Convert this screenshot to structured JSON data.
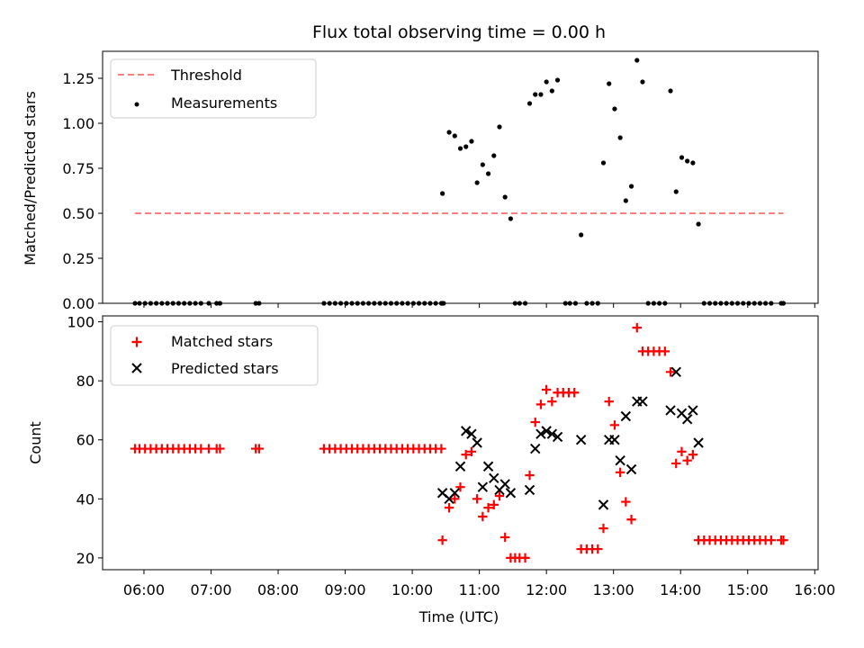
{
  "chart_data": [
    {
      "type": "scatter",
      "title": "Flux total observing time = 0.00 h",
      "xlabel": "",
      "ylabel": "Matched/Predicted stars",
      "ylim": [
        0,
        1.4
      ],
      "yticks": [
        "0.00",
        "0.25",
        "0.50",
        "0.75",
        "1.00",
        "1.25"
      ],
      "legend_position": "top-left",
      "series": [
        {
          "name": "Threshold",
          "kind": "line",
          "style": "dashed",
          "color": "#ff7f7f",
          "points": [
            [
              "05:52",
              0.5
            ],
            [
              "15:32",
              0.5
            ]
          ]
        },
        {
          "name": "Measurements",
          "kind": "scatter",
          "marker": "dot",
          "color": "#000000",
          "points": [
            [
              "05:52",
              0
            ],
            [
              "05:56",
              0
            ],
            [
              "06:01",
              0
            ],
            [
              "06:06",
              0
            ],
            [
              "06:11",
              0
            ],
            [
              "06:16",
              0
            ],
            [
              "06:21",
              0
            ],
            [
              "06:26",
              0
            ],
            [
              "06:31",
              0
            ],
            [
              "06:36",
              0
            ],
            [
              "06:41",
              0
            ],
            [
              "06:46",
              0
            ],
            [
              "06:51",
              0
            ],
            [
              "06:58",
              0
            ],
            [
              "07:05",
              0
            ],
            [
              "07:08",
              0
            ],
            [
              "07:40",
              0
            ],
            [
              "07:43",
              0
            ],
            [
              "08:41",
              0
            ],
            [
              "08:46",
              0
            ],
            [
              "08:51",
              0
            ],
            [
              "08:56",
              0
            ],
            [
              "09:01",
              0
            ],
            [
              "09:06",
              0
            ],
            [
              "09:11",
              0
            ],
            [
              "09:16",
              0
            ],
            [
              "09:21",
              0
            ],
            [
              "09:26",
              0
            ],
            [
              "09:31",
              0
            ],
            [
              "09:36",
              0
            ],
            [
              "09:41",
              0
            ],
            [
              "09:46",
              0
            ],
            [
              "09:51",
              0
            ],
            [
              "09:56",
              0
            ],
            [
              "10:01",
              0
            ],
            [
              "10:06",
              0
            ],
            [
              "10:11",
              0
            ],
            [
              "10:16",
              0
            ],
            [
              "10:21",
              0
            ],
            [
              "10:26",
              0
            ],
            [
              "10:27",
              0
            ],
            [
              "10:28",
              0
            ],
            [
              "10:27",
              0.61
            ],
            [
              "10:33",
              0.95
            ],
            [
              "10:38",
              0.93
            ],
            [
              "10:43",
              0.86
            ],
            [
              "10:48",
              0.87
            ],
            [
              "10:53",
              0.9
            ],
            [
              "10:58",
              0.67
            ],
            [
              "11:03",
              0.77
            ],
            [
              "11:08",
              0.72
            ],
            [
              "11:13",
              0.82
            ],
            [
              "11:18",
              0.98
            ],
            [
              "11:23",
              0.59
            ],
            [
              "11:28",
              0.47
            ],
            [
              "11:32",
              0
            ],
            [
              "11:36",
              0
            ],
            [
              "11:41",
              0
            ],
            [
              "11:45",
              1.11
            ],
            [
              "11:50",
              1.16
            ],
            [
              "11:55",
              1.16
            ],
            [
              "12:00",
              1.23
            ],
            [
              "12:05",
              1.18
            ],
            [
              "12:10",
              1.24
            ],
            [
              "12:17",
              0
            ],
            [
              "12:21",
              0
            ],
            [
              "12:26",
              0
            ],
            [
              "12:31",
              0.38
            ],
            [
              "12:36",
              0
            ],
            [
              "12:41",
              0
            ],
            [
              "12:46",
              0
            ],
            [
              "12:51",
              0.78
            ],
            [
              "12:56",
              1.22
            ],
            [
              "13:01",
              1.08
            ],
            [
              "13:06",
              0.92
            ],
            [
              "13:11",
              0.57
            ],
            [
              "13:16",
              0.65
            ],
            [
              "13:21",
              1.35
            ],
            [
              "13:26",
              1.23
            ],
            [
              "13:31",
              0
            ],
            [
              "13:36",
              0
            ],
            [
              "13:41",
              0
            ],
            [
              "13:46",
              0
            ],
            [
              "13:51",
              1.18
            ],
            [
              "13:56",
              0.62
            ],
            [
              "14:01",
              0.81
            ],
            [
              "14:06",
              0.79
            ],
            [
              "14:11",
              0.78
            ],
            [
              "14:16",
              0.44
            ],
            [
              "14:21",
              0
            ],
            [
              "14:26",
              0
            ],
            [
              "14:31",
              0
            ],
            [
              "14:36",
              0
            ],
            [
              "14:41",
              0
            ],
            [
              "14:46",
              0
            ],
            [
              "14:51",
              0
            ],
            [
              "14:56",
              0
            ],
            [
              "15:01",
              0
            ],
            [
              "15:06",
              0
            ],
            [
              "15:11",
              0
            ],
            [
              "15:16",
              0
            ],
            [
              "15:21",
              0
            ],
            [
              "15:30",
              0
            ],
            [
              "15:32",
              0
            ]
          ]
        }
      ]
    },
    {
      "type": "scatter",
      "title": "",
      "xlabel": "Time (UTC)",
      "ylabel": "Count",
      "ylim": [
        16,
        102
      ],
      "yticks": [
        "20",
        "40",
        "60",
        "80",
        "100"
      ],
      "xticks": [
        "06:00",
        "07:00",
        "08:00",
        "09:00",
        "10:00",
        "11:00",
        "12:00",
        "13:00",
        "14:00",
        "15:00",
        "16:00"
      ],
      "xlim": [
        "05:23",
        "16:03"
      ],
      "legend_position": "top-left",
      "series": [
        {
          "name": "Matched stars",
          "kind": "scatter",
          "marker": "plus",
          "color": "#ff0000",
          "points": [
            [
              "05:52",
              57
            ],
            [
              "05:56",
              57
            ],
            [
              "06:01",
              57
            ],
            [
              "06:06",
              57
            ],
            [
              "06:11",
              57
            ],
            [
              "06:16",
              57
            ],
            [
              "06:21",
              57
            ],
            [
              "06:26",
              57
            ],
            [
              "06:31",
              57
            ],
            [
              "06:36",
              57
            ],
            [
              "06:41",
              57
            ],
            [
              "06:46",
              57
            ],
            [
              "06:51",
              57
            ],
            [
              "06:58",
              57
            ],
            [
              "07:05",
              57
            ],
            [
              "07:08",
              57
            ],
            [
              "07:40",
              57
            ],
            [
              "07:43",
              57
            ],
            [
              "08:41",
              57
            ],
            [
              "08:46",
              57
            ],
            [
              "08:51",
              57
            ],
            [
              "08:56",
              57
            ],
            [
              "09:01",
              57
            ],
            [
              "09:06",
              57
            ],
            [
              "09:11",
              57
            ],
            [
              "09:16",
              57
            ],
            [
              "09:21",
              57
            ],
            [
              "09:26",
              57
            ],
            [
              "09:31",
              57
            ],
            [
              "09:36",
              57
            ],
            [
              "09:41",
              57
            ],
            [
              "09:46",
              57
            ],
            [
              "09:51",
              57
            ],
            [
              "09:56",
              57
            ],
            [
              "10:01",
              57
            ],
            [
              "10:06",
              57
            ],
            [
              "10:11",
              57
            ],
            [
              "10:16",
              57
            ],
            [
              "10:21",
              57
            ],
            [
              "10:26",
              57
            ],
            [
              "10:27",
              26
            ],
            [
              "10:33",
              37
            ],
            [
              "10:38",
              40
            ],
            [
              "10:43",
              44
            ],
            [
              "10:48",
              55
            ],
            [
              "10:53",
              56
            ],
            [
              "10:58",
              40
            ],
            [
              "11:03",
              34
            ],
            [
              "11:08",
              37
            ],
            [
              "11:13",
              38
            ],
            [
              "11:18",
              41
            ],
            [
              "11:23",
              27
            ],
            [
              "11:28",
              20
            ],
            [
              "11:32",
              20
            ],
            [
              "11:36",
              20
            ],
            [
              "11:41",
              20
            ],
            [
              "11:45",
              48
            ],
            [
              "11:50",
              66
            ],
            [
              "11:55",
              72
            ],
            [
              "12:00",
              77
            ],
            [
              "12:05",
              73
            ],
            [
              "12:10",
              76
            ],
            [
              "12:15",
              76
            ],
            [
              "12:20",
              76
            ],
            [
              "12:25",
              76
            ],
            [
              "12:31",
              23
            ],
            [
              "12:36",
              23
            ],
            [
              "12:41",
              23
            ],
            [
              "12:46",
              23
            ],
            [
              "12:51",
              30
            ],
            [
              "12:56",
              73
            ],
            [
              "13:01",
              65
            ],
            [
              "13:06",
              49
            ],
            [
              "13:11",
              39
            ],
            [
              "13:16",
              33
            ],
            [
              "13:21",
              98
            ],
            [
              "13:26",
              90
            ],
            [
              "13:31",
              90
            ],
            [
              "13:36",
              90
            ],
            [
              "13:41",
              90
            ],
            [
              "13:46",
              90
            ],
            [
              "13:51",
              83
            ],
            [
              "13:56",
              52
            ],
            [
              "14:01",
              56
            ],
            [
              "14:06",
              53
            ],
            [
              "14:11",
              55
            ],
            [
              "14:16",
              26
            ],
            [
              "14:21",
              26
            ],
            [
              "14:26",
              26
            ],
            [
              "14:31",
              26
            ],
            [
              "14:36",
              26
            ],
            [
              "14:41",
              26
            ],
            [
              "14:46",
              26
            ],
            [
              "14:51",
              26
            ],
            [
              "14:56",
              26
            ],
            [
              "15:01",
              26
            ],
            [
              "15:06",
              26
            ],
            [
              "15:11",
              26
            ],
            [
              "15:16",
              26
            ],
            [
              "15:21",
              26
            ],
            [
              "15:30",
              26
            ],
            [
              "15:32",
              26
            ]
          ]
        },
        {
          "name": "Predicted stars",
          "kind": "scatter",
          "marker": "x",
          "color": "#000000",
          "points": [
            [
              "10:27",
              42
            ],
            [
              "10:33",
              40
            ],
            [
              "10:38",
              42
            ],
            [
              "10:43",
              51
            ],
            [
              "10:48",
              63
            ],
            [
              "10:53",
              62
            ],
            [
              "10:58",
              59
            ],
            [
              "11:03",
              44
            ],
            [
              "11:08",
              51
            ],
            [
              "11:13",
              47
            ],
            [
              "11:18",
              43
            ],
            [
              "11:23",
              45
            ],
            [
              "11:28",
              42
            ],
            [
              "11:45",
              43
            ],
            [
              "11:50",
              57
            ],
            [
              "11:55",
              62
            ],
            [
              "12:00",
              63
            ],
            [
              "12:05",
              62
            ],
            [
              "12:10",
              61
            ],
            [
              "12:31",
              60
            ],
            [
              "12:51",
              38
            ],
            [
              "12:56",
              60
            ],
            [
              "13:01",
              60
            ],
            [
              "13:06",
              53
            ],
            [
              "13:11",
              68
            ],
            [
              "13:16",
              50
            ],
            [
              "13:21",
              73
            ],
            [
              "13:26",
              73
            ],
            [
              "13:51",
              70
            ],
            [
              "13:56",
              83
            ],
            [
              "14:01",
              69
            ],
            [
              "14:06",
              67
            ],
            [
              "14:11",
              70
            ],
            [
              "14:16",
              59
            ]
          ]
        }
      ]
    }
  ]
}
